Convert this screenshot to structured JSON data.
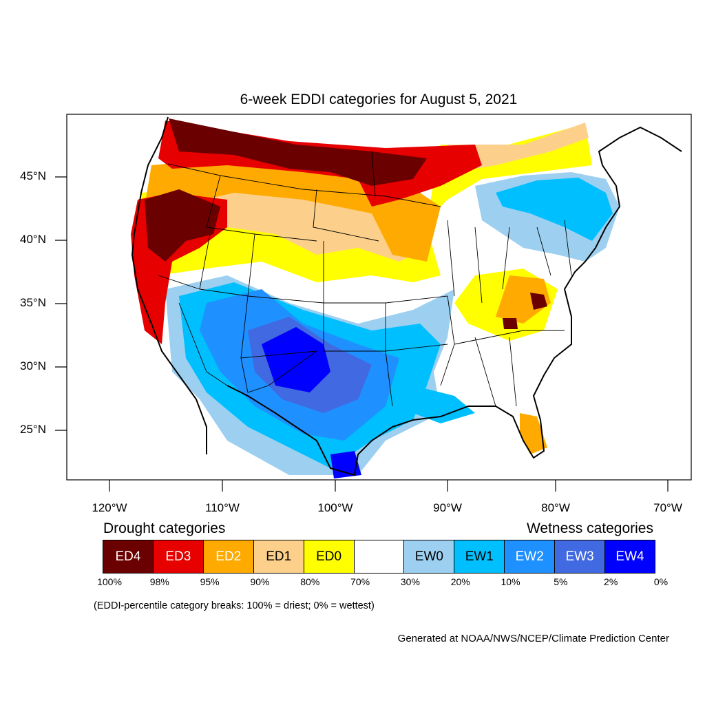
{
  "title": "6-week EDDI categories for August 5, 2021",
  "y_axis_labels": [
    "45°N",
    "40°N",
    "35°N",
    "30°N",
    "25°N"
  ],
  "x_axis_labels": [
    "120°W",
    "110°W",
    "100°W",
    "90°W",
    "80°W",
    "70°W"
  ],
  "legend": {
    "drought_header": "Drought categories",
    "wetness_header": "Wetness categories",
    "categories": [
      {
        "label": "ED4",
        "color": "#6b0000",
        "text_color": "#ffffff"
      },
      {
        "label": "ED3",
        "color": "#e60000",
        "text_color": "#ffffff"
      },
      {
        "label": "ED2",
        "color": "#ffaa00",
        "text_color": "#ffffff"
      },
      {
        "label": "ED1",
        "color": "#fcd08a",
        "text_color": "#000000"
      },
      {
        "label": "ED0",
        "color": "#ffff00",
        "text_color": "#000000"
      },
      {
        "label": "",
        "color": "#ffffff",
        "text_color": "#000000"
      },
      {
        "label": "EW0",
        "color": "#9dd0f0",
        "text_color": "#000000"
      },
      {
        "label": "EW1",
        "color": "#00bfff",
        "text_color": "#000000"
      },
      {
        "label": "EW2",
        "color": "#1e90ff",
        "text_color": "#ffffff"
      },
      {
        "label": "EW3",
        "color": "#4169e1",
        "text_color": "#ffffff"
      },
      {
        "label": "EW4",
        "color": "#0000ff",
        "text_color": "#ffffff"
      }
    ],
    "breaks": [
      "100%",
      "98%",
      "95%",
      "90%",
      "80%",
      "70%",
      "30%",
      "20%",
      "10%",
      "5%",
      "2%",
      "0%"
    ]
  },
  "note": "(EDDI-percentile category breaks: 100% = driest; 0% = wettest)",
  "credit": "Generated at NOAA/NWS/NCEP/Climate Prediction Center"
}
